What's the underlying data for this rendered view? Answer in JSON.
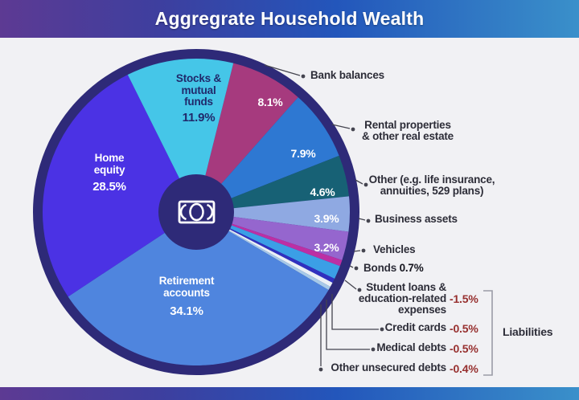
{
  "title": "Aggregrate Household Wealth",
  "chart_data": {
    "type": "pie",
    "title": "Aggregrate Household Wealth",
    "unit": "%",
    "start_angle_deg": 14,
    "ring_color": "#2E2A78",
    "center_color": "#2E2A78",
    "leader_line_color": "#44444F",
    "background_color": "#F1F1F4",
    "header_gradient": [
      "#5D3A93",
      "#2356BB",
      "#3A90CA"
    ],
    "negative_value_color": "#97302F",
    "slices": [
      {
        "id": "bank-balances",
        "label": "Bank balances",
        "value": 8.1,
        "display": "8.1%",
        "color": "#A63A7E"
      },
      {
        "id": "rental-properties",
        "label": "Rental properties & other real estate",
        "value": 7.9,
        "display": "7.9%",
        "color": "#2E78D2"
      },
      {
        "id": "other-assets",
        "label": "Other (e.g. life insurance, annuities, 529 plans)",
        "value": 4.6,
        "display": "4.6%",
        "color": "#176175"
      },
      {
        "id": "business-assets",
        "label": "Business assets",
        "value": 3.9,
        "display": "3.9%",
        "color": "#8FA9E2"
      },
      {
        "id": "vehicles",
        "label": "Vehicles",
        "value": 3.2,
        "display": "3.2%",
        "color": "#9566CE"
      },
      {
        "id": "bonds",
        "label": "Bonds",
        "value": 0.7,
        "display": "0.7%",
        "color": "#BC2FA4"
      },
      {
        "id": "student-loans",
        "label": "Student loans & education-related expenses",
        "value": -1.5,
        "display": "-1.5%",
        "color": "#3B9FE6"
      },
      {
        "id": "credit-cards",
        "label": "Credit cards",
        "value": -0.5,
        "display": "-0.5%",
        "color": "#3030BF"
      },
      {
        "id": "medical-debts",
        "label": "Medical debts",
        "value": -0.5,
        "display": "-0.5%",
        "color": "#EAF0F6"
      },
      {
        "id": "other-unsecured-debts",
        "label": "Other unsecured debts",
        "value": -0.4,
        "display": "-0.4%",
        "color": "#A6C9E8"
      },
      {
        "id": "retirement-accounts",
        "label": "Retirement accounts",
        "value": 34.1,
        "display": "34.1%",
        "color": "#4F85DE"
      },
      {
        "id": "home-equity",
        "label": "Home equity",
        "value": 28.5,
        "display": "28.5%",
        "color": "#4B32E4"
      },
      {
        "id": "stocks-mutual-funds",
        "label": "Stocks & mutual funds",
        "value": 11.9,
        "display": "11.9%",
        "color": "#45C6E8"
      }
    ],
    "group_label": "Liabilities",
    "group_members": [
      "Student loans & education-related expenses",
      "Credit cards",
      "Medical debts",
      "Other unsecured debts"
    ]
  },
  "display": {
    "bank_label": "Bank balances",
    "bank_value": "8.1%",
    "rental_l1": "Rental properties",
    "rental_l2": "& other real estate",
    "rental_value": "7.9%",
    "other_l1": "Other (e.g. life insurance,",
    "other_l2": "annuities, 529 plans)",
    "other_value": "4.6%",
    "business_label": "Business assets",
    "business_value": "3.9%",
    "vehicles_label": "Vehicles",
    "vehicles_value": "3.2%",
    "bonds_label": "Bonds",
    "bonds_value": "0.7%",
    "student_l1": "Student loans &",
    "student_l2": "education-related",
    "student_l3": "expenses",
    "student_value": "-1.5%",
    "credit_label": "Credit cards",
    "credit_value": "-0.5%",
    "medical_label": "Medical debts",
    "medical_value": "-0.5%",
    "unsecured_label": "Other unsecured debts",
    "unsecured_value": "-0.4%",
    "liabilities_label": "Liabilities",
    "home_l1": "Home",
    "home_l2": "equity",
    "home_value": "28.5%",
    "stocks_l1": "Stocks &",
    "stocks_l2": "mutual",
    "stocks_l3": "funds",
    "stocks_value": "11.9%",
    "retirement_l1": "Retirement",
    "retirement_l2": "accounts",
    "retirement_value": "34.1%"
  }
}
